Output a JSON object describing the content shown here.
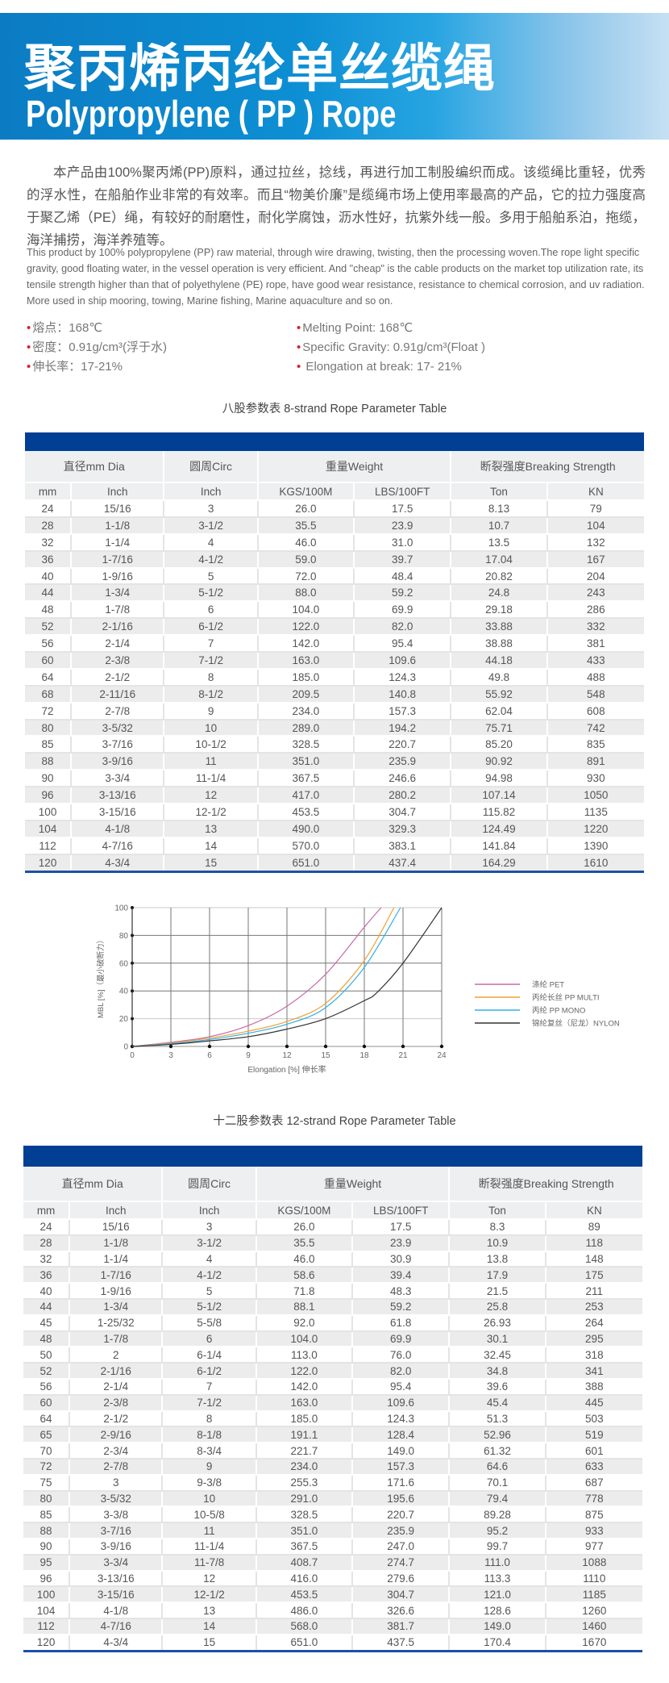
{
  "header": {
    "title_cn": "聚丙烯丙纶单丝缆绳",
    "title_en": "Polypropylene ( PP ) Rope"
  },
  "intro": {
    "cn": "本产品由100%聚丙烯(PP)原料，通过拉丝，捻线，再进行加工制股编织而成。该缆绳比重轻，优秀的浮水性，在船舶作业非常的有效率。而且“物美价廉”是缆绳市场上使用率最高的产品，它的拉力强度高于聚乙烯（PE）绳，有较好的耐磨性，耐化学腐蚀，沥水性好，抗紫外线一般。多用于船舶系泊，拖缆，海洋捕捞，海洋养殖等。",
    "en": "This product by 100% polypropylene (PP) raw material, through wire drawing, twisting, then the processing woven.The rope light specific gravity, good floating water, in the vessel operation is very efficient. And \"cheap\" is the cable products on the market top utilization rate, its tensile strength higher than that of polyethylene (PE) rope, have good wear resistance, resistance to chemical corrosion, and uv radiation. More used in ship mooring, towing, Marine fishing, Marine aquaculture and so on."
  },
  "specs": {
    "cn": [
      "熔点：168℃",
      "密度：0.91g/cm³(浮于水)",
      "伸长率：17-21%"
    ],
    "en": [
      "Melting Point: 168℃",
      "Specific Gravity: 0.91g/cm³(Float )",
      " Elongation at break: 17- 21%"
    ]
  },
  "colors": {
    "bar": "#003f94",
    "banner": "#0b7cc4",
    "bullet": "#d8202a"
  },
  "table_headers": {
    "groups": [
      "直径mm Dia",
      "圆周Circ",
      "重量Weight",
      "断裂强度Breaking Strength"
    ],
    "units": [
      "mm",
      "Inch",
      "Inch",
      "KGS/100M",
      "LBS/100FT",
      "Ton",
      "KN"
    ]
  },
  "table8": {
    "caption": "八股参数表   8-strand Rope Parameter Table",
    "rows": [
      [
        "24",
        "15/16",
        "3",
        "26.0",
        "17.5",
        "8.13",
        "79"
      ],
      [
        "28",
        "1-1/8",
        "3-1/2",
        "35.5",
        "23.9",
        "10.7",
        "104"
      ],
      [
        "32",
        "1-1/4",
        "4",
        "46.0",
        "31.0",
        "13.5",
        "132"
      ],
      [
        "36",
        "1-7/16",
        "4-1/2",
        "59.0",
        "39.7",
        "17.04",
        "167"
      ],
      [
        "40",
        "1-9/16",
        "5",
        "72.0",
        "48.4",
        "20.82",
        "204"
      ],
      [
        "44",
        "1-3/4",
        "5-1/2",
        "88.0",
        "59.2",
        "24.8",
        "243"
      ],
      [
        "48",
        "1-7/8",
        "6",
        "104.0",
        "69.9",
        "29.18",
        "286"
      ],
      [
        "52",
        "2-1/16",
        "6-1/2",
        "122.0",
        "82.0",
        "33.88",
        "332"
      ],
      [
        "56",
        "2-1/4",
        "7",
        "142.0",
        "95.4",
        "38.88",
        "381"
      ],
      [
        "60",
        "2-3/8",
        "7-1/2",
        "163.0",
        "109.6",
        "44.18",
        "433"
      ],
      [
        "64",
        "2-1/2",
        "8",
        "185.0",
        "124.3",
        "49.8",
        "488"
      ],
      [
        "68",
        "2-11/16",
        "8-1/2",
        "209.5",
        "140.8",
        "55.92",
        "548"
      ],
      [
        "72",
        "2-7/8",
        "9",
        "234.0",
        "157.3",
        "62.04",
        "608"
      ],
      [
        "80",
        "3-5/32",
        "10",
        "289.0",
        "194.2",
        "75.71",
        "742"
      ],
      [
        "85",
        "3-7/16",
        "10-1/2",
        "328.5",
        "220.7",
        "85.20",
        "835"
      ],
      [
        "88",
        "3-9/16",
        "11",
        "351.0",
        "235.9",
        "90.92",
        "891"
      ],
      [
        "90",
        "3-3/4",
        "11-1/4",
        "367.5",
        "246.6",
        "94.98",
        "930"
      ],
      [
        "96",
        "3-13/16",
        "12",
        "417.0",
        "280.2",
        "107.14",
        "1050"
      ],
      [
        "100",
        "3-15/16",
        "12-1/2",
        "453.5",
        "304.7",
        "115.82",
        "1135"
      ],
      [
        "104",
        "4-1/8",
        "13",
        "490.0",
        "329.3",
        "124.49",
        "1220"
      ],
      [
        "112",
        "4-7/16",
        "14",
        "570.0",
        "383.1",
        "141.84",
        "1390"
      ],
      [
        "120",
        "4-3/4",
        "15",
        "651.0",
        "437.4",
        "164.29",
        "1610"
      ]
    ]
  },
  "chart_data": {
    "type": "line",
    "xlabel": "Elongation [%] 伸长率",
    "ylabel": "MBL [%]（最小破断力）",
    "xlim": [
      0,
      24
    ],
    "ylim": [
      0,
      100
    ],
    "xticks": [
      0,
      3,
      6,
      9,
      12,
      15,
      18,
      21,
      24
    ],
    "yticks": [
      0,
      20,
      40,
      60,
      80,
      100
    ],
    "grid": true,
    "legend": "right",
    "series": [
      {
        "name": "涤纶 PET",
        "color": "#c86aa8",
        "points": [
          [
            0,
            0
          ],
          [
            3,
            3
          ],
          [
            6,
            7
          ],
          [
            9,
            15
          ],
          [
            12,
            29
          ],
          [
            15,
            52
          ],
          [
            18,
            86
          ],
          [
            19.3,
            100
          ]
        ]
      },
      {
        "name": "丙纶长丝 PP MULTI",
        "color": "#f0a030",
        "points": [
          [
            0,
            0
          ],
          [
            3,
            2.5
          ],
          [
            6,
            6
          ],
          [
            9,
            11
          ],
          [
            12,
            18
          ],
          [
            15,
            31
          ],
          [
            18,
            62
          ],
          [
            20.3,
            100
          ]
        ]
      },
      {
        "name": "丙纶 PP MONO",
        "color": "#30b0e8",
        "points": [
          [
            0,
            0
          ],
          [
            3,
            2
          ],
          [
            6,
            5
          ],
          [
            9,
            9.5
          ],
          [
            12,
            16
          ],
          [
            15,
            28
          ],
          [
            18,
            57
          ],
          [
            20.8,
            100
          ]
        ]
      },
      {
        "name": "锦纶复丝（尼龙）NYLON",
        "color": "#333333",
        "points": [
          [
            0,
            0
          ],
          [
            3,
            1.5
          ],
          [
            6,
            4
          ],
          [
            9,
            7
          ],
          [
            12,
            12.5
          ],
          [
            15,
            20
          ],
          [
            18,
            33
          ],
          [
            19,
            39
          ],
          [
            21,
            60
          ],
          [
            24,
            100
          ]
        ]
      }
    ]
  },
  "table12": {
    "caption": "十二股参数表   12-strand Rope Parameter Table",
    "rows": [
      [
        "24",
        "15/16",
        "3",
        "26.0",
        "17.5",
        "8.3",
        "89"
      ],
      [
        "28",
        "1-1/8",
        "3-1/2",
        "35.5",
        "23.9",
        "10.9",
        "118"
      ],
      [
        "32",
        "1-1/4",
        "4",
        "46.0",
        "30.9",
        "13.8",
        "148"
      ],
      [
        "36",
        "1-7/16",
        "4-1/2",
        "58.6",
        "39.4",
        "17.9",
        "175"
      ],
      [
        "40",
        "1-9/16",
        "5",
        "71.8",
        "48.3",
        "21.5",
        "211"
      ],
      [
        "44",
        "1-3/4",
        "5-1/2",
        "88.1",
        "59.2",
        "25.8",
        "253"
      ],
      [
        "45",
        "1-25/32",
        "5-5/8",
        "92.0",
        "61.8",
        "26.93",
        "264"
      ],
      [
        "48",
        "1-7/8",
        "6",
        "104.0",
        "69.9",
        "30.1",
        "295"
      ],
      [
        "50",
        "2",
        "6-1/4",
        "113.0",
        "76.0",
        "32.45",
        "318"
      ],
      [
        "52",
        "2-1/16",
        "6-1/2",
        "122.0",
        "82.0",
        "34.8",
        "341"
      ],
      [
        "56",
        "2-1/4",
        "7",
        "142.0",
        "95.4",
        "39.6",
        "388"
      ],
      [
        "60",
        "2-3/8",
        "7-1/2",
        "163.0",
        "109.6",
        "45.4",
        "445"
      ],
      [
        "64",
        "2-1/2",
        "8",
        "185.0",
        "124.3",
        "51.3",
        "503"
      ],
      [
        "65",
        "2-9/16",
        "8-1/8",
        "191.1",
        "128.4",
        "52.96",
        "519"
      ],
      [
        "70",
        "2-3/4",
        "8-3/4",
        "221.7",
        "149.0",
        "61.32",
        "601"
      ],
      [
        "72",
        "2-7/8",
        "9",
        "234.0",
        "157.3",
        "64.6",
        "633"
      ],
      [
        "75",
        "3",
        "9-3/8",
        "255.3",
        "171.6",
        "70.1",
        "687"
      ],
      [
        "80",
        "3-5/32",
        "10",
        "291.0",
        "195.6",
        "79.4",
        "778"
      ],
      [
        "85",
        "3-3/8",
        "10-5/8",
        "328.5",
        "220.7",
        "89.28",
        "875"
      ],
      [
        "88",
        "3-7/16",
        "11",
        "351.0",
        "235.9",
        "95.2",
        "933"
      ],
      [
        "90",
        "3-9/16",
        "11-1/4",
        "367.5",
        "247.0",
        "99.7",
        "977"
      ],
      [
        "95",
        "3-3/4",
        "11-7/8",
        "408.7",
        "274.7",
        "111.0",
        "1088"
      ],
      [
        "96",
        "3-13/16",
        "12",
        "416.0",
        "279.6",
        "113.3",
        "1110"
      ],
      [
        "100",
        "3-15/16",
        "12-1/2",
        "453.5",
        "304.7",
        "121.0",
        "1185"
      ],
      [
        "104",
        "4-1/8",
        "13",
        "486.0",
        "326.6",
        "128.6",
        "1260"
      ],
      [
        "112",
        "4-7/16",
        "14",
        "568.0",
        "381.7",
        "149.0",
        "1460"
      ],
      [
        "120",
        "4-3/4",
        "15",
        "651.0",
        "437.5",
        "170.4",
        "1670"
      ]
    ]
  }
}
